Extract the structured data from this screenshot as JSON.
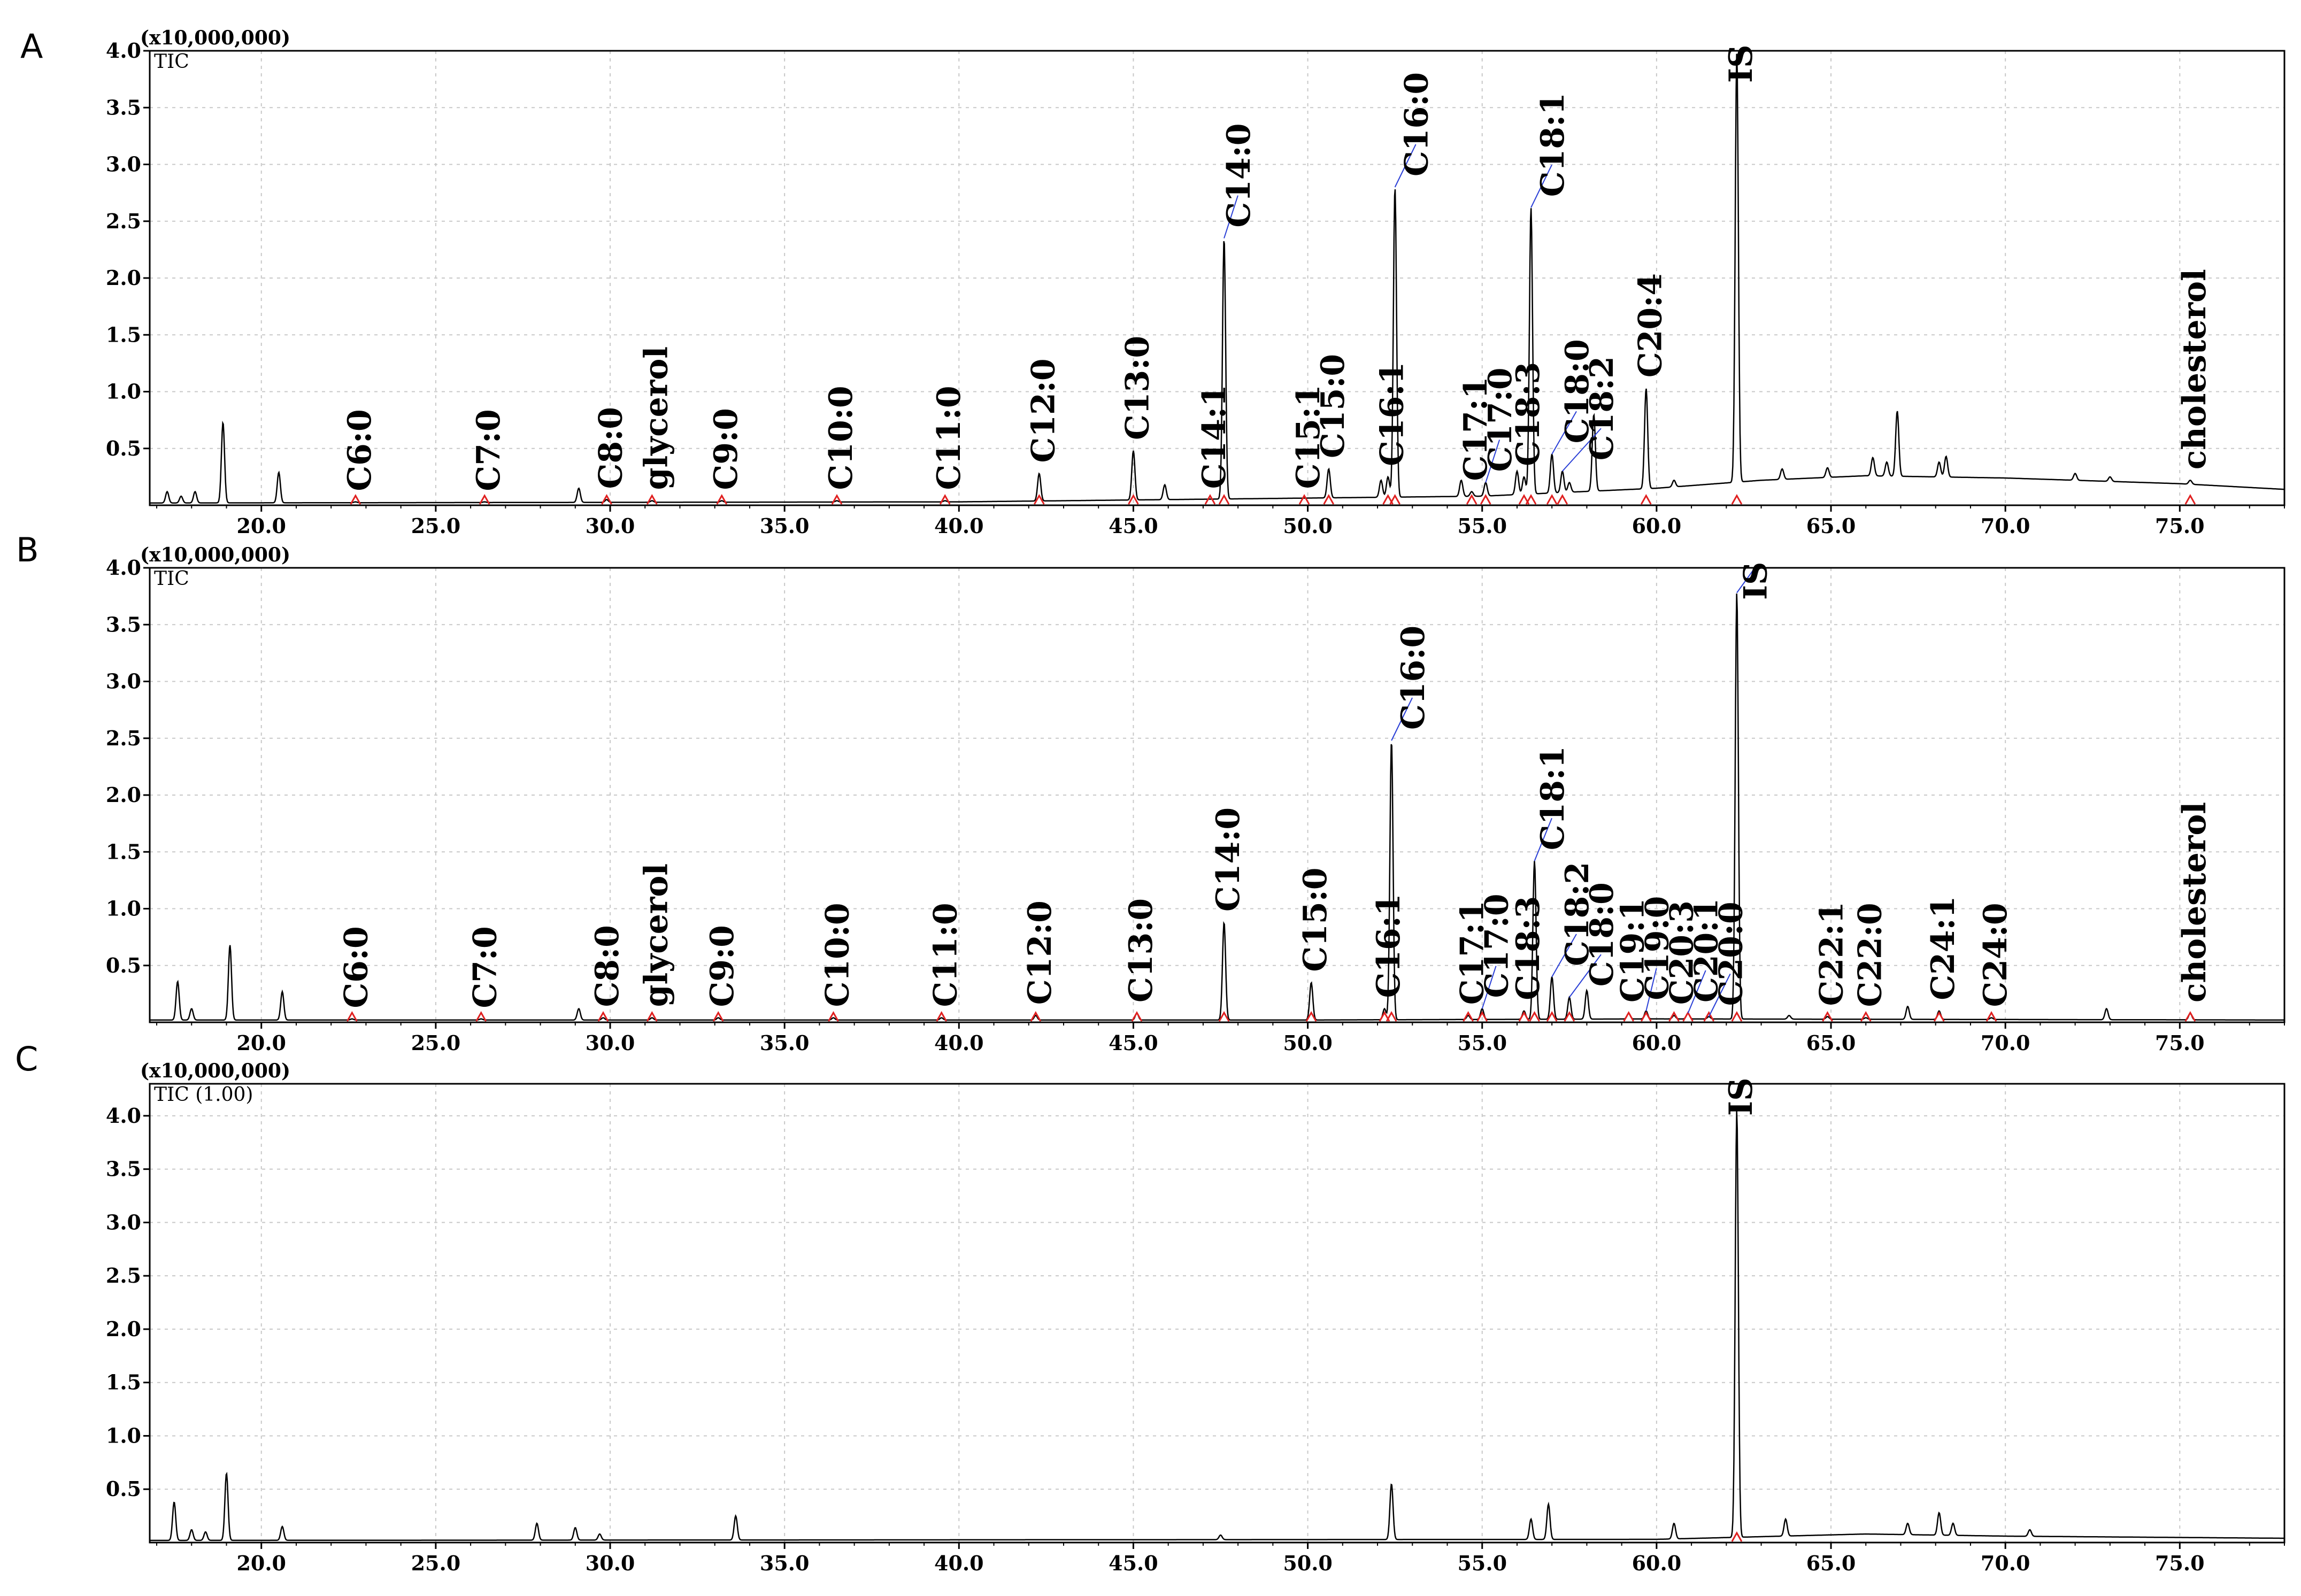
{
  "chart_data": [
    {
      "type": "line",
      "panel_letter": "A",
      "scale_label": "(x10,000,000)",
      "trace_label": "TIC",
      "ylim": [
        0,
        4.0
      ],
      "xlim": [
        16.8,
        78.0
      ],
      "y_ticks": [
        "0.5",
        "1.0",
        "1.5",
        "2.0",
        "2.5",
        "3.0",
        "3.5",
        "4.0"
      ],
      "x_ticks": [
        "20.0",
        "25.0",
        "30.0",
        "35.0",
        "40.0",
        "45.0",
        "50.0",
        "55.0",
        "60.0",
        "65.0",
        "70.0",
        "75.0"
      ],
      "grid": true,
      "peaks": [
        {
          "label": "C6:0",
          "x": 22.7,
          "y": 0.03
        },
        {
          "label": "C7:0",
          "x": 26.4,
          "y": 0.03
        },
        {
          "label": "C8:0",
          "x": 29.9,
          "y": 0.05
        },
        {
          "label": "glycerol",
          "x": 31.2,
          "y": 0.04
        },
        {
          "label": "C9:0",
          "x": 33.2,
          "y": 0.04
        },
        {
          "label": "C10:0",
          "x": 36.5,
          "y": 0.04
        },
        {
          "label": "C11:0",
          "x": 39.6,
          "y": 0.04
        },
        {
          "label": "C12:0",
          "x": 42.3,
          "y": 0.28
        },
        {
          "label": "C13:0",
          "x": 45.0,
          "y": 0.48
        },
        {
          "label": "C14:1",
          "x": 47.2,
          "y": 0.05
        },
        {
          "label": "C14:0",
          "x": 47.6,
          "y": 2.35
        },
        {
          "label": "C15:1",
          "x": 49.9,
          "y": 0.05
        },
        {
          "label": "C15:0",
          "x": 50.6,
          "y": 0.32
        },
        {
          "label": "C16:1",
          "x": 52.3,
          "y": 0.25
        },
        {
          "label": "C16:0",
          "x": 52.5,
          "y": 2.8
        },
        {
          "label": "C17:1",
          "x": 54.7,
          "y": 0.12
        },
        {
          "label": "C17:0",
          "x": 55.1,
          "y": 0.2
        },
        {
          "label": "C18:3",
          "x": 56.2,
          "y": 0.25
        },
        {
          "label": "C18:1",
          "x": 56.4,
          "y": 2.62
        },
        {
          "label": "C18:0",
          "x": 57.0,
          "y": 0.45
        },
        {
          "label": "C18:2",
          "x": 57.3,
          "y": 0.3
        },
        {
          "label": "C20:4",
          "x": 59.7,
          "y": 1.03
        },
        {
          "label": "IS",
          "x": 62.3,
          "y": 3.98
        },
        {
          "label": "cholesterol",
          "x": 75.3,
          "y": 0.22
        }
      ],
      "unlabeled_peaks": [
        {
          "x": 17.3,
          "y": 0.12
        },
        {
          "x": 17.7,
          "y": 0.08
        },
        {
          "x": 18.1,
          "y": 0.12
        },
        {
          "x": 18.9,
          "y": 0.73
        },
        {
          "x": 20.5,
          "y": 0.29
        },
        {
          "x": 29.1,
          "y": 0.15
        },
        {
          "x": 45.9,
          "y": 0.18
        },
        {
          "x": 52.1,
          "y": 0.22
        },
        {
          "x": 54.4,
          "y": 0.22
        },
        {
          "x": 56.0,
          "y": 0.3
        },
        {
          "x": 57.5,
          "y": 0.2
        },
        {
          "x": 58.2,
          "y": 0.8
        },
        {
          "x": 60.5,
          "y": 0.22
        },
        {
          "x": 63.6,
          "y": 0.32
        },
        {
          "x": 64.9,
          "y": 0.33
        },
        {
          "x": 66.2,
          "y": 0.42
        },
        {
          "x": 66.6,
          "y": 0.38
        },
        {
          "x": 66.9,
          "y": 0.83
        },
        {
          "x": 68.1,
          "y": 0.38
        },
        {
          "x": 68.3,
          "y": 0.43
        },
        {
          "x": 72.0,
          "y": 0.28
        },
        {
          "x": 73.0,
          "y": 0.25
        }
      ],
      "baseline": [
        [
          16.8,
          0.02
        ],
        [
          40.0,
          0.03
        ],
        [
          55.0,
          0.08
        ],
        [
          60.0,
          0.15
        ],
        [
          63.0,
          0.22
        ],
        [
          66.0,
          0.26
        ],
        [
          70.0,
          0.24
        ],
        [
          75.0,
          0.19
        ],
        [
          78.0,
          0.14
        ]
      ]
    },
    {
      "type": "line",
      "panel_letter": "B",
      "scale_label": "(x10,000,000)",
      "trace_label": "TIC",
      "ylim": [
        0,
        4.0
      ],
      "xlim": [
        16.8,
        78.0
      ],
      "y_ticks": [
        "0.5",
        "1.0",
        "1.5",
        "2.0",
        "2.5",
        "3.0",
        "3.5",
        "4.0"
      ],
      "x_ticks": [
        "20.0",
        "25.0",
        "30.0",
        "35.0",
        "40.0",
        "45.0",
        "50.0",
        "55.0",
        "60.0",
        "65.0",
        "70.0",
        "75.0"
      ],
      "grid": true,
      "peaks": [
        {
          "label": "C6:0",
          "x": 22.6,
          "y": 0.03
        },
        {
          "label": "C7:0",
          "x": 26.3,
          "y": 0.03
        },
        {
          "label": "C8:0",
          "x": 29.8,
          "y": 0.04
        },
        {
          "label": "glycerol",
          "x": 31.2,
          "y": 0.04
        },
        {
          "label": "C9:0",
          "x": 33.1,
          "y": 0.04
        },
        {
          "label": "C10:0",
          "x": 36.4,
          "y": 0.04
        },
        {
          "label": "C11:0",
          "x": 39.5,
          "y": 0.04
        },
        {
          "label": "C12:0",
          "x": 42.2,
          "y": 0.06
        },
        {
          "label": "C13:0",
          "x": 45.1,
          "y": 0.08
        },
        {
          "label": "C14:0",
          "x": 47.6,
          "y": 0.88
        },
        {
          "label": "C15:0",
          "x": 50.1,
          "y": 0.35
        },
        {
          "label": "C16:1",
          "x": 52.2,
          "y": 0.12
        },
        {
          "label": "C16:0",
          "x": 52.4,
          "y": 2.48
        },
        {
          "label": "C17:1",
          "x": 54.6,
          "y": 0.06
        },
        {
          "label": "C17:0",
          "x": 55.0,
          "y": 0.12
        },
        {
          "label": "C18:3",
          "x": 56.2,
          "y": 0.1
        },
        {
          "label": "C18:1",
          "x": 56.5,
          "y": 1.42
        },
        {
          "label": "C18:2",
          "x": 57.0,
          "y": 0.4
        },
        {
          "label": "C18:0",
          "x": 57.5,
          "y": 0.22
        },
        {
          "label": "C19:1",
          "x": 59.2,
          "y": 0.08
        },
        {
          "label": "C19:0",
          "x": 59.7,
          "y": 0.1
        },
        {
          "label": "C20:3",
          "x": 60.5,
          "y": 0.06
        },
        {
          "label": "C20:1",
          "x": 60.9,
          "y": 0.08
        },
        {
          "label": "C20:0",
          "x": 61.5,
          "y": 0.05
        },
        {
          "label": "IS",
          "x": 62.3,
          "y": 3.78
        },
        {
          "label": "C22:1",
          "x": 64.9,
          "y": 0.05
        },
        {
          "label": "C22:0",
          "x": 66.0,
          "y": 0.04
        },
        {
          "label": "C24:1",
          "x": 68.1,
          "y": 0.1
        },
        {
          "label": "C24:0",
          "x": 69.6,
          "y": 0.04
        },
        {
          "label": "cholesterol",
          "x": 75.3,
          "y": 0.08
        }
      ],
      "unlabeled_peaks": [
        {
          "x": 17.6,
          "y": 0.36
        },
        {
          "x": 18.0,
          "y": 0.12
        },
        {
          "x": 19.1,
          "y": 0.68
        },
        {
          "x": 20.6,
          "y": 0.27
        },
        {
          "x": 29.1,
          "y": 0.12
        },
        {
          "x": 58.0,
          "y": 0.28
        },
        {
          "x": 63.8,
          "y": 0.06
        },
        {
          "x": 67.2,
          "y": 0.14
        },
        {
          "x": 72.9,
          "y": 0.12
        }
      ],
      "baseline": [
        [
          16.8,
          0.02
        ],
        [
          50.0,
          0.02
        ],
        [
          60.0,
          0.03
        ],
        [
          78.0,
          0.02
        ]
      ]
    },
    {
      "type": "line",
      "panel_letter": "C",
      "scale_label": "(x10,000,000)",
      "trace_label": "TIC (1.00)",
      "ylim": [
        0,
        4.3
      ],
      "xlim": [
        16.8,
        78.0
      ],
      "y_ticks": [
        "0.5",
        "1.0",
        "1.5",
        "2.0",
        "2.5",
        "3.0",
        "3.5",
        "4.0"
      ],
      "x_ticks": [
        "20.0",
        "25.0",
        "30.0",
        "35.0",
        "40.0",
        "45.0",
        "50.0",
        "55.0",
        "60.0",
        "65.0",
        "70.0",
        "75.0"
      ],
      "grid": true,
      "peaks": [
        {
          "label": "IS",
          "x": 62.3,
          "y": 4.05
        }
      ],
      "unlabeled_peaks": [
        {
          "x": 17.5,
          "y": 0.38
        },
        {
          "x": 18.0,
          "y": 0.12
        },
        {
          "x": 18.4,
          "y": 0.1
        },
        {
          "x": 19.0,
          "y": 0.65
        },
        {
          "x": 20.6,
          "y": 0.15
        },
        {
          "x": 27.9,
          "y": 0.18
        },
        {
          "x": 29.0,
          "y": 0.14
        },
        {
          "x": 29.7,
          "y": 0.08
        },
        {
          "x": 33.6,
          "y": 0.25
        },
        {
          "x": 47.5,
          "y": 0.07
        },
        {
          "x": 52.4,
          "y": 0.55
        },
        {
          "x": 56.4,
          "y": 0.22
        },
        {
          "x": 56.9,
          "y": 0.36
        },
        {
          "x": 60.5,
          "y": 0.18
        },
        {
          "x": 63.7,
          "y": 0.22
        },
        {
          "x": 67.2,
          "y": 0.18
        },
        {
          "x": 68.1,
          "y": 0.28
        },
        {
          "x": 68.5,
          "y": 0.18
        },
        {
          "x": 70.7,
          "y": 0.12
        }
      ],
      "baseline": [
        [
          16.8,
          0.02
        ],
        [
          60.0,
          0.03
        ],
        [
          66.0,
          0.08
        ],
        [
          70.0,
          0.06
        ],
        [
          78.0,
          0.04
        ]
      ]
    }
  ]
}
